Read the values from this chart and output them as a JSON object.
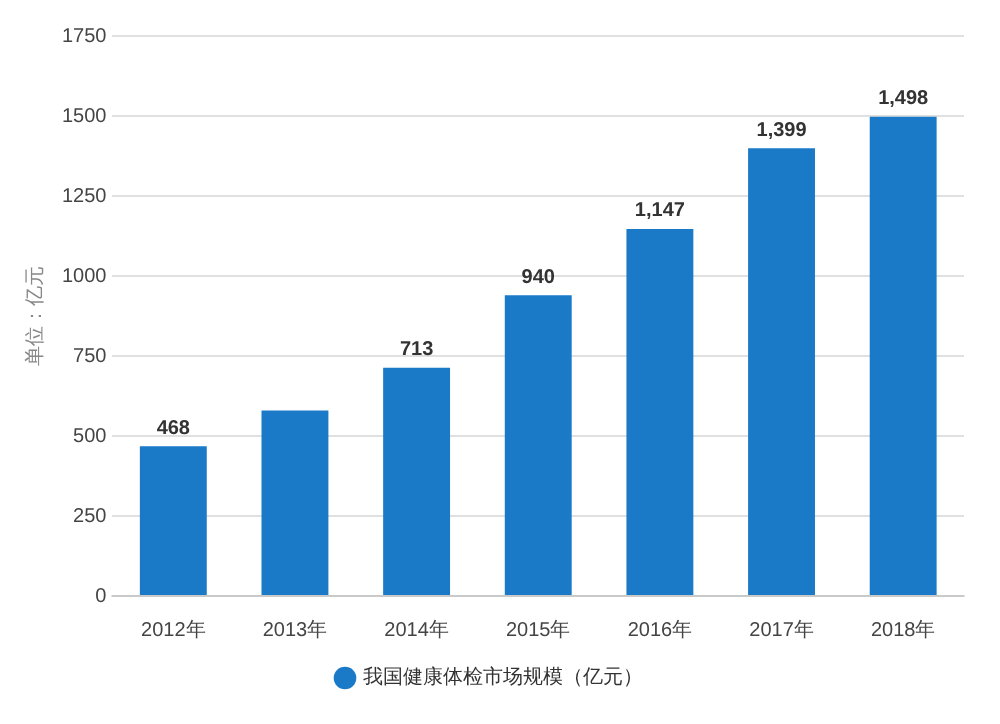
{
  "chart_data": {
    "type": "bar",
    "ylabel": "单位：亿元",
    "categories": [
      "2012年",
      "2013年",
      "2014年",
      "2015年",
      "2016年",
      "2017年",
      "2018年"
    ],
    "series": [
      {
        "name": "我国健康体检市场规模（亿元）",
        "color": "#1a7ac8",
        "values": [
          468,
          580,
          713,
          940,
          1147,
          1399,
          1498
        ],
        "value_labels": [
          "468",
          null,
          "713",
          "940",
          "1,147",
          "1,399",
          "1,498"
        ]
      }
    ],
    "ylim": [
      0,
      1750
    ],
    "yticks": [
      0,
      250,
      500,
      750,
      1000,
      1250,
      1500,
      1750
    ],
    "grid": "y",
    "legend": "bottom"
  }
}
